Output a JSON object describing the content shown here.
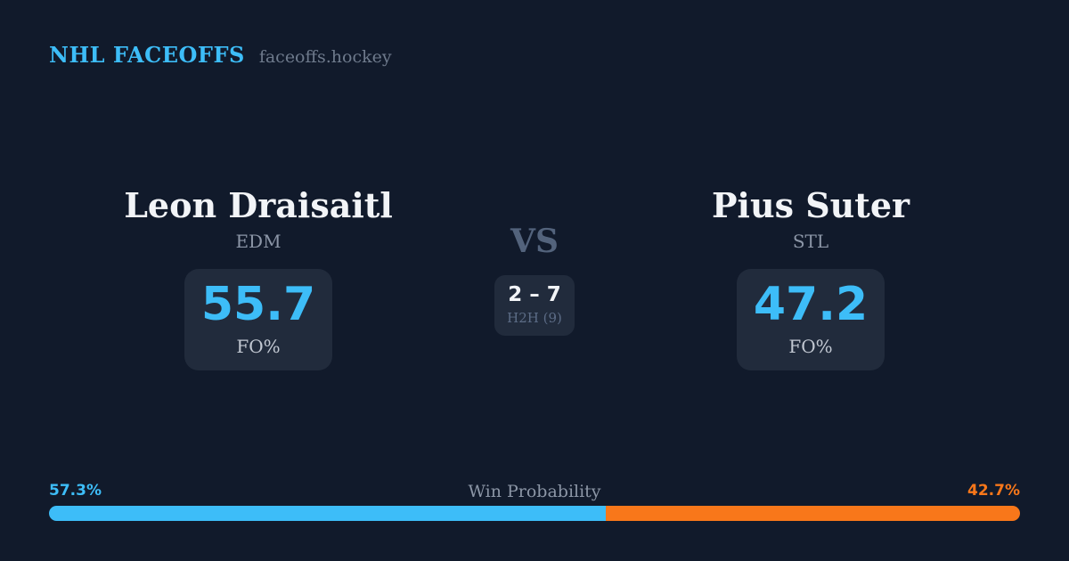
{
  "header": {
    "brand": "NHL FACEOFFS",
    "site": "faceoffs.hockey"
  },
  "players": {
    "left": {
      "name": "Leon Draisaitl",
      "team": "EDM",
      "stat_value": "55.7",
      "stat_label": "FO%"
    },
    "right": {
      "name": "Pius Suter",
      "team": "STL",
      "stat_value": "47.2",
      "stat_label": "FO%"
    }
  },
  "center": {
    "vs": "VS",
    "h2h_score": "2 – 7",
    "h2h_label": "H2H (9)"
  },
  "win_probability": {
    "title": "Win Probability",
    "left_pct": "57.3%",
    "right_pct": "42.7%",
    "left_value": 57.3,
    "right_value": 42.7
  },
  "colors": {
    "background": "#111A2B",
    "card": "#212B3C",
    "accent_blue": "#3DBDF8",
    "accent_orange": "#F8771A",
    "text_primary": "#F2F4F7",
    "text_muted": "#8C96A7",
    "vs_text": "#53637C"
  },
  "chart_data": {
    "type": "bar",
    "title": "Win Probability",
    "categories": [
      "Leon Draisaitl (EDM)",
      "Pius Suter (STL)"
    ],
    "series": [
      {
        "name": "Win Probability %",
        "values": [
          57.3,
          42.7
        ]
      },
      {
        "name": "Faceoff %",
        "values": [
          55.7,
          47.2
        ]
      },
      {
        "name": "H2H wins",
        "values": [
          2,
          7
        ]
      }
    ],
    "h2h_sample_size": 9,
    "xlim": [
      0,
      100
    ],
    "legend_position": "none",
    "grid": false
  }
}
